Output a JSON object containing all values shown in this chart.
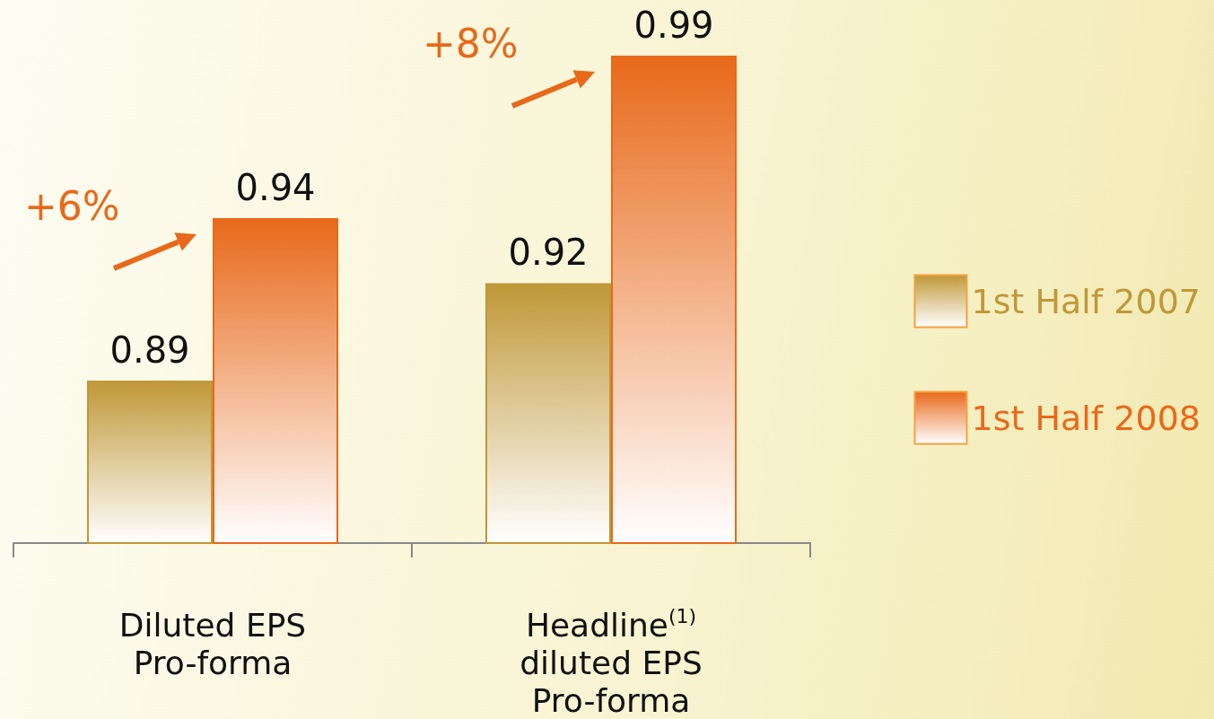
{
  "chart_data": {
    "type": "bar",
    "categories": [
      "Diluted EPS\nPro-forma",
      "Headline$^{(1)}$\ndiluted EPS\nPro-forma"
    ],
    "series": [
      {
        "name": "1st Half 2007",
        "color": "#c09838",
        "values": [
          0.89,
          0.92
        ]
      },
      {
        "name": "1st Half 2008",
        "color": "#e8691a",
        "values": [
          0.94,
          0.99
        ]
      }
    ],
    "ylim": [
      0.84,
      0.99
    ],
    "data_labels": true,
    "legend": "right",
    "grid": false,
    "annotations": [
      "+6%",
      "+8%"
    ]
  }
}
